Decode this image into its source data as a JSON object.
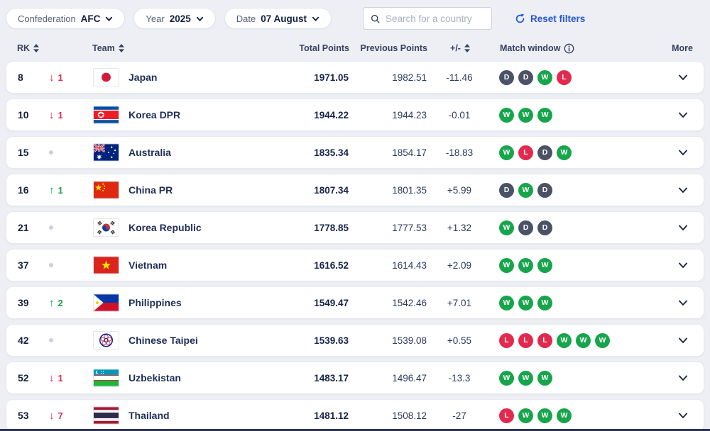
{
  "filters": {
    "confederation": {
      "label": "Confederation",
      "value": "AFC"
    },
    "year": {
      "label": "Year",
      "value": "2025"
    },
    "date": {
      "label": "Date",
      "value": "07 August"
    },
    "search_placeholder": "Search for a country",
    "reset_label": "Reset filters"
  },
  "table": {
    "headers": {
      "rank": "RK",
      "team": "Team",
      "total": "Total Points",
      "previous": "Previous Points",
      "plus_minus": "+/-",
      "match_window": "Match window",
      "more": "More"
    },
    "rows": [
      {
        "rank": "8",
        "movement": {
          "dir": "down",
          "value": "1"
        },
        "team": "Japan",
        "flag": "japan",
        "total": "1971.05",
        "previous": "1982.51",
        "delta": "-11.46",
        "match_window": [
          "D",
          "D",
          "W",
          "L"
        ]
      },
      {
        "rank": "10",
        "movement": {
          "dir": "down",
          "value": "1"
        },
        "team": "Korea DPR",
        "flag": "korea-dpr",
        "total": "1944.22",
        "previous": "1944.23",
        "delta": "-0.01",
        "match_window": [
          "W",
          "W",
          "W"
        ]
      },
      {
        "rank": "15",
        "movement": {
          "dir": "none",
          "value": ""
        },
        "team": "Australia",
        "flag": "australia",
        "total": "1835.34",
        "previous": "1854.17",
        "delta": "-18.83",
        "match_window": [
          "W",
          "L",
          "D",
          "W"
        ]
      },
      {
        "rank": "16",
        "movement": {
          "dir": "up",
          "value": "1"
        },
        "team": "China PR",
        "flag": "china",
        "total": "1807.34",
        "previous": "1801.35",
        "delta": "+5.99",
        "match_window": [
          "D",
          "W",
          "D"
        ]
      },
      {
        "rank": "21",
        "movement": {
          "dir": "none",
          "value": ""
        },
        "team": "Korea Republic",
        "flag": "korea-republic",
        "total": "1778.85",
        "previous": "1777.53",
        "delta": "+1.32",
        "match_window": [
          "W",
          "D",
          "D"
        ]
      },
      {
        "rank": "37",
        "movement": {
          "dir": "none",
          "value": ""
        },
        "team": "Vietnam",
        "flag": "vietnam",
        "total": "1616.52",
        "previous": "1614.43",
        "delta": "+2.09",
        "match_window": [
          "W",
          "W",
          "W"
        ]
      },
      {
        "rank": "39",
        "movement": {
          "dir": "up",
          "value": "2"
        },
        "team": "Philippines",
        "flag": "philippines",
        "total": "1549.47",
        "previous": "1542.46",
        "delta": "+7.01",
        "match_window": [
          "W",
          "W",
          "W"
        ]
      },
      {
        "rank": "42",
        "movement": {
          "dir": "none",
          "value": ""
        },
        "team": "Chinese Taipei",
        "flag": "chinese-taipei",
        "total": "1539.63",
        "previous": "1539.08",
        "delta": "+0.55",
        "match_window": [
          "L",
          "L",
          "L",
          "W",
          "W",
          "W"
        ]
      },
      {
        "rank": "52",
        "movement": {
          "dir": "down",
          "value": "1"
        },
        "team": "Uzbekistan",
        "flag": "uzbekistan",
        "total": "1483.17",
        "previous": "1496.47",
        "delta": "-13.3",
        "match_window": [
          "W",
          "W",
          "W"
        ]
      },
      {
        "rank": "53",
        "movement": {
          "dir": "down",
          "value": "7"
        },
        "team": "Thailand",
        "flag": "thailand",
        "total": "1481.12",
        "previous": "1508.12",
        "delta": "-27",
        "match_window": [
          "L",
          "W",
          "W",
          "W"
        ]
      }
    ]
  },
  "colors": {
    "win": "#17a54b",
    "draw": "#4b5265",
    "loss": "#e22a4f",
    "up": "#12a14c",
    "down": "#e02a4e",
    "accent_blue": "#2457d6"
  }
}
